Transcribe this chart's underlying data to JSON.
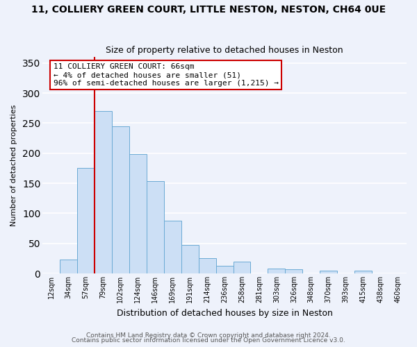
{
  "title": "11, COLLIERY GREEN COURT, LITTLE NESTON, NESTON, CH64 0UE",
  "subtitle": "Size of property relative to detached houses in Neston",
  "xlabel": "Distribution of detached houses by size in Neston",
  "ylabel": "Number of detached properties",
  "bar_labels": [
    "12sqm",
    "34sqm",
    "57sqm",
    "79sqm",
    "102sqm",
    "124sqm",
    "146sqm",
    "169sqm",
    "191sqm",
    "214sqm",
    "236sqm",
    "258sqm",
    "281sqm",
    "303sqm",
    "326sqm",
    "348sqm",
    "370sqm",
    "393sqm",
    "415sqm",
    "438sqm",
    "460sqm"
  ],
  "bar_heights": [
    0,
    23,
    175,
    270,
    245,
    198,
    153,
    88,
    47,
    25,
    13,
    20,
    0,
    8,
    7,
    0,
    5,
    0,
    5,
    0,
    0
  ],
  "bar_color": "#ccdff5",
  "bar_edge_color": "#6aaad4",
  "vline_color": "#cc0000",
  "vline_x": 2.5,
  "annotation_title": "11 COLLIERY GREEN COURT: 66sqm",
  "annotation_line1": "← 4% of detached houses are smaller (51)",
  "annotation_line2": "96% of semi-detached houses are larger (1,215) →",
  "annotation_box_facecolor": "#ffffff",
  "annotation_box_edgecolor": "#cc0000",
  "ylim": [
    0,
    360
  ],
  "yticks": [
    0,
    50,
    100,
    150,
    200,
    250,
    300,
    350
  ],
  "footer1": "Contains HM Land Registry data © Crown copyright and database right 2024.",
  "footer2": "Contains public sector information licensed under the Open Government Licence v3.0.",
  "bg_color": "#eef2fb",
  "plot_bg_color": "#eef2fb",
  "grid_color": "#ffffff",
  "title_fontsize": 10,
  "subtitle_fontsize": 9,
  "ylabel_fontsize": 8,
  "xlabel_fontsize": 9,
  "tick_fontsize": 7,
  "annotation_fontsize": 8,
  "footer_fontsize": 6.5
}
